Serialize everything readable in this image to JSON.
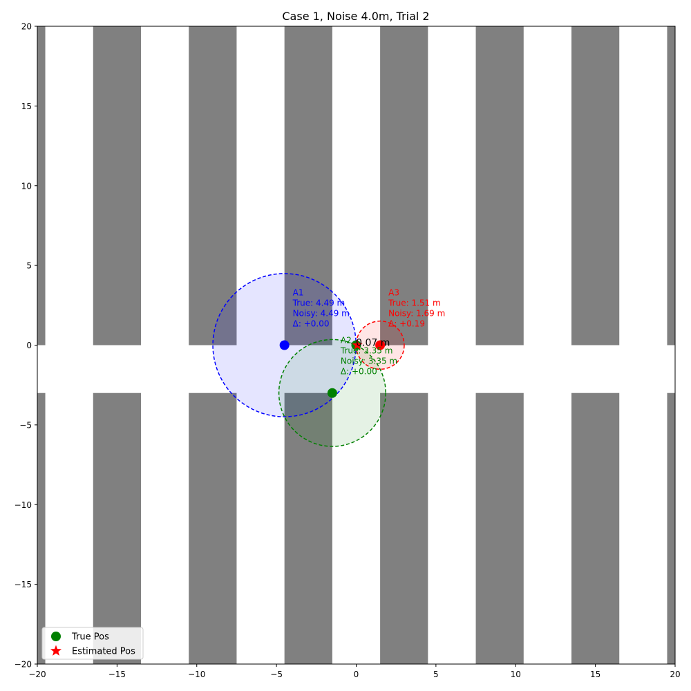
{
  "chart_data": {
    "type": "scatter",
    "title": "Case 1, Noise 4.0m, Trial 2",
    "xlabel": "",
    "ylabel": "",
    "xlim": [
      -20,
      20
    ],
    "ylim": [
      -20,
      20
    ],
    "x_ticks": [
      -20,
      -15,
      -10,
      -5,
      0,
      5,
      10,
      15,
      20
    ],
    "y_ticks": [
      -20,
      -15,
      -10,
      -5,
      0,
      5,
      10,
      15,
      20
    ],
    "x_tick_labels": [
      "−20",
      "−15",
      "−10",
      "−5",
      "0",
      "5",
      "10",
      "15",
      "20"
    ],
    "y_tick_labels": [
      "−20",
      "−15",
      "−10",
      "−5",
      "0",
      "5",
      "10",
      "15",
      "20"
    ],
    "grid": false,
    "legend_position": "bottom-left",
    "obstacles": {
      "color": "#808080",
      "rects": [
        {
          "x0": -20,
          "x1": -19.5,
          "y0": 0,
          "y1": 20
        },
        {
          "x0": -16.5,
          "x1": -13.5,
          "y0": 0,
          "y1": 20
        },
        {
          "x0": -10.5,
          "x1": -7.5,
          "y0": 0,
          "y1": 20
        },
        {
          "x0": -4.5,
          "x1": -1.5,
          "y0": 0,
          "y1": 20
        },
        {
          "x0": 1.5,
          "x1": 4.5,
          "y0": 0,
          "y1": 20
        },
        {
          "x0": 7.5,
          "x1": 10.5,
          "y0": 0,
          "y1": 20
        },
        {
          "x0": 13.5,
          "x1": 16.5,
          "y0": 0,
          "y1": 20
        },
        {
          "x0": 19.5,
          "x1": 20,
          "y0": 0,
          "y1": 20
        },
        {
          "x0": -20,
          "x1": -19.5,
          "y0": -20,
          "y1": -3
        },
        {
          "x0": -16.5,
          "x1": -13.5,
          "y0": -20,
          "y1": -3
        },
        {
          "x0": -10.5,
          "x1": -7.5,
          "y0": -20,
          "y1": -3
        },
        {
          "x0": -4.5,
          "x1": -1.5,
          "y0": -20,
          "y1": -3
        },
        {
          "x0": 1.5,
          "x1": 4.5,
          "y0": -20,
          "y1": -3
        },
        {
          "x0": 7.5,
          "x1": 10.5,
          "y0": -20,
          "y1": -3
        },
        {
          "x0": 13.5,
          "x1": 16.5,
          "y0": -20,
          "y1": -3
        },
        {
          "x0": 19.5,
          "x1": 20,
          "y0": -20,
          "y1": -3
        }
      ]
    },
    "anchors": [
      {
        "name": "A1",
        "x": -4.5,
        "y": 0,
        "radius": 4.49,
        "color": "#0000ff",
        "fill": "rgba(0,0,255,0.10)",
        "lines": [
          "A1",
          "True: 4.49 m",
          "Noisy: 4.49 m",
          "Δ: +0.00"
        ]
      },
      {
        "name": "A2",
        "x": -1.5,
        "y": -3,
        "radius": 3.35,
        "color": "#008000",
        "fill": "rgba(0,128,0,0.10)",
        "lines": [
          "A2",
          "True: 3.35 m",
          "Noisy: 3.35 m",
          "Δ: +0.00"
        ]
      },
      {
        "name": "A3",
        "x": 1.5,
        "y": 0,
        "radius": 1.51,
        "color": "#ff0000",
        "fill": "rgba(255,0,0,0.10)",
        "lines": [
          "A3",
          "True: 1.51 m",
          "Noisy: 1.69 m",
          "Δ: +0.19"
        ]
      }
    ],
    "true_position": {
      "x": 0,
      "y": 0,
      "color": "#008000"
    },
    "estimated_position": {
      "x": 0.07,
      "y": 0.0,
      "color": "#ff0000"
    },
    "error_label": "0.07 m",
    "legend": [
      {
        "label": "True Pos",
        "marker": "circle",
        "color": "#008000"
      },
      {
        "label": "Estimated Pos",
        "marker": "star",
        "color": "#ff0000"
      }
    ]
  }
}
